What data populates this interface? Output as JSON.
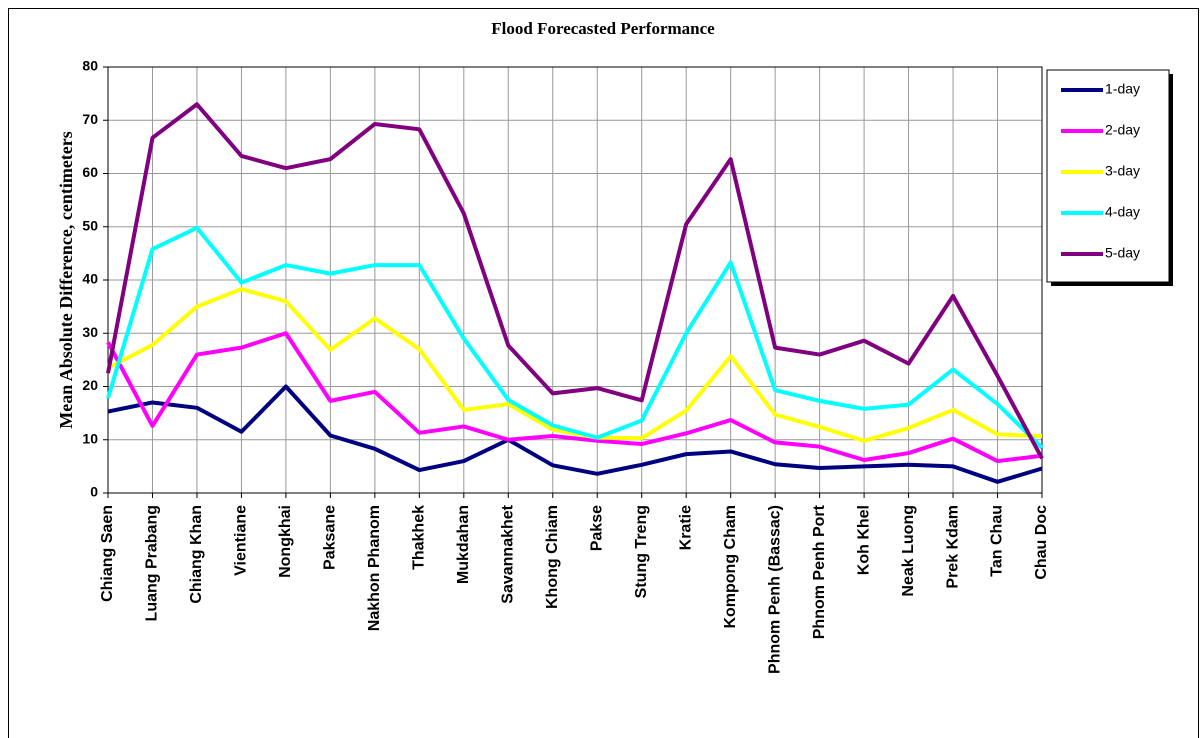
{
  "chart_data": {
    "type": "line",
    "title": "Flood Forecasted Performance",
    "y_label": "Mean Absolute Difference, centimeters",
    "categories": [
      "Chiang Saen",
      "Luang Prabang",
      "Chiang Khan",
      "Vientiane",
      "Nongkhai",
      "Paksane",
      "Nakhon Phanom",
      "Thakhek",
      "Mukdahan",
      "Savannakhet",
      "Khong Chiam",
      "Pakse",
      "Stung Treng",
      "Kratie",
      "Kompong Cham",
      "Phnom Penh (Bassac)",
      "Phnom Penh Port",
      "Koh Khel",
      "Neak Luong",
      "Prek Kdam",
      "Tan Chau",
      "Chau Doc"
    ],
    "series": [
      {
        "name": "1-day",
        "color": "#000080",
        "values": [
          15.3,
          17,
          16,
          11.5,
          20,
          10.8,
          8.3,
          4.3,
          6,
          10,
          5.2,
          3.6,
          5.3,
          7.3,
          7.8,
          5.4,
          4.7,
          5,
          5.3,
          5,
          2.1,
          4.6
        ]
      },
      {
        "name": "2-day",
        "color": "#ff00ff",
        "values": [
          28.3,
          12.6,
          26,
          27.3,
          30,
          17.3,
          19,
          11.3,
          12.5,
          10,
          10.7,
          9.8,
          9.2,
          11.2,
          13.7,
          9.5,
          8.7,
          6.2,
          7.5,
          10.2,
          6,
          7
        ]
      },
      {
        "name": "3-day",
        "color": "#ffff00",
        "values": [
          23.5,
          27.8,
          35,
          38.3,
          36,
          26.9,
          32.8,
          27,
          15.6,
          16.7,
          11.9,
          10.4,
          10.3,
          15.5,
          25.7,
          14.7,
          12.4,
          9.8,
          12.2,
          15.6,
          11,
          10.7
        ]
      },
      {
        "name": "4-day",
        "color": "#00ffff",
        "values": [
          17.8,
          45.8,
          49.8,
          39.5,
          42.8,
          41.2,
          42.8,
          42.8,
          29,
          17.5,
          12.7,
          10.4,
          13.6,
          30,
          43.3,
          19.3,
          17.3,
          15.8,
          16.6,
          23.2,
          16.7,
          8.5
        ]
      },
      {
        "name": "5-day",
        "color": "#800080",
        "values": [
          22.5,
          66.7,
          73,
          63.3,
          61,
          62.7,
          69.3,
          68.3,
          52.5,
          27.7,
          18.7,
          19.7,
          17.4,
          50.5,
          62.7,
          27.3,
          26,
          28.6,
          24.3,
          37,
          22,
          6.5
        ]
      }
    ],
    "ylim": [
      0,
      80
    ],
    "yticks": [
      0,
      10,
      20,
      30,
      40,
      50,
      60,
      70,
      80
    ],
    "grid": true,
    "legend": "right"
  }
}
